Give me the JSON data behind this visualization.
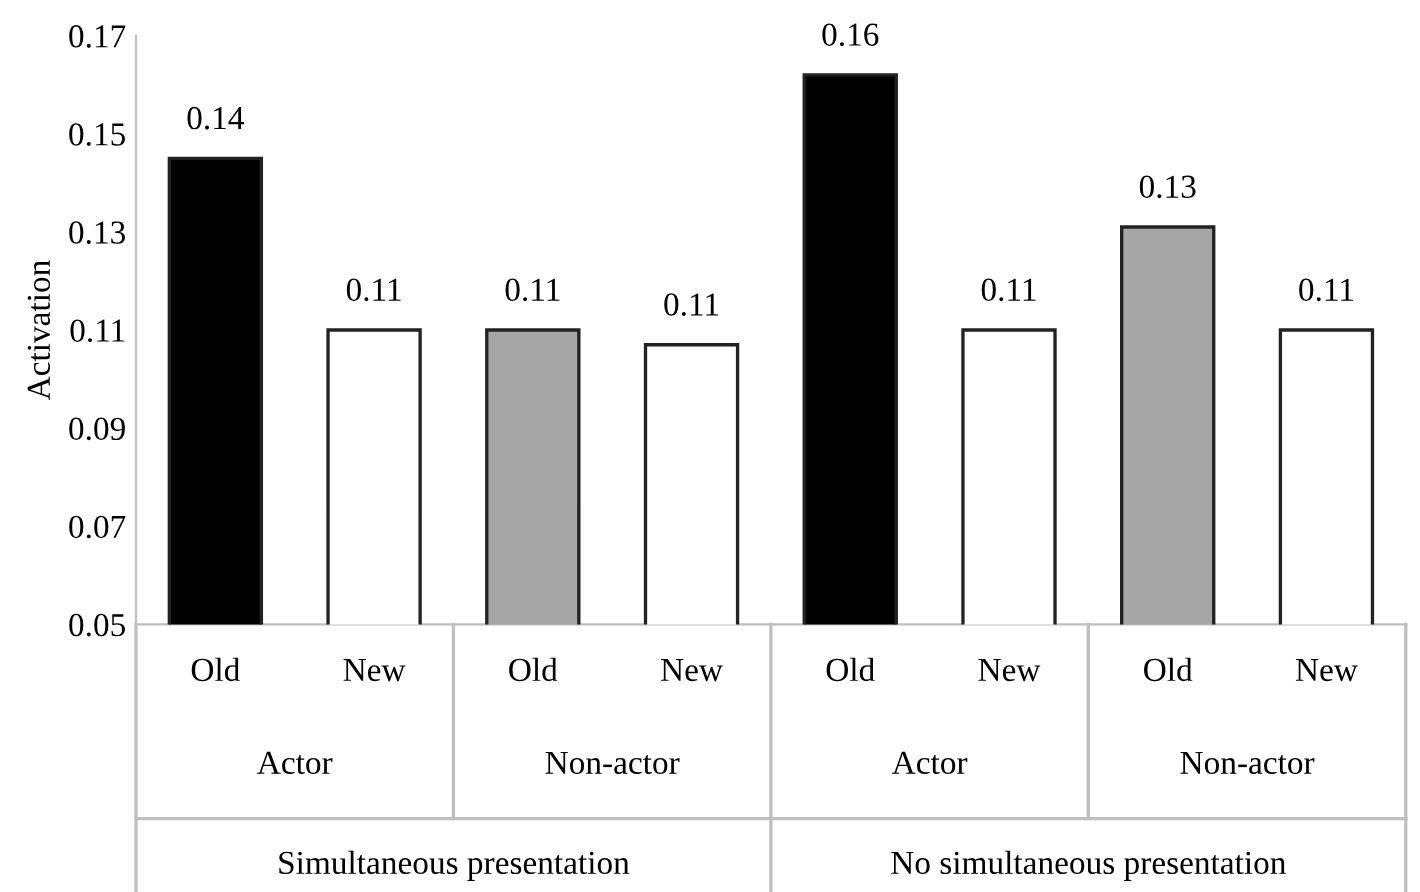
{
  "chart_data": {
    "type": "bar",
    "ylabel": "Activation",
    "categories": [
      "Old",
      "New",
      "Old",
      "New",
      "Old",
      "New",
      "Old",
      "New"
    ],
    "values": [
      0.145,
      0.11,
      0.11,
      0.107,
      0.162,
      0.11,
      0.131,
      0.11
    ],
    "value_labels": [
      "0.14",
      "0.11",
      "0.11",
      "0.11",
      "0.16",
      "0.11",
      "0.13",
      "0.11"
    ],
    "colors": [
      "#000000",
      "#ffffff",
      "#a6a6a6",
      "#ffffff",
      "#000000",
      "#ffffff",
      "#a6a6a6",
      "#ffffff"
    ],
    "annotations": [
      "Actor",
      "Non-actor",
      "Actor",
      "Non-actor",
      "Simultaneous presentation",
      "No simultaneous presentation"
    ],
    "ylim": [
      0.05,
      0.17
    ],
    "yticks": [
      "0.05",
      "0.07",
      "0.09",
      "0.11",
      "0.13",
      "0.15",
      "0.17"
    ],
    "grid": false,
    "legend": false
  }
}
